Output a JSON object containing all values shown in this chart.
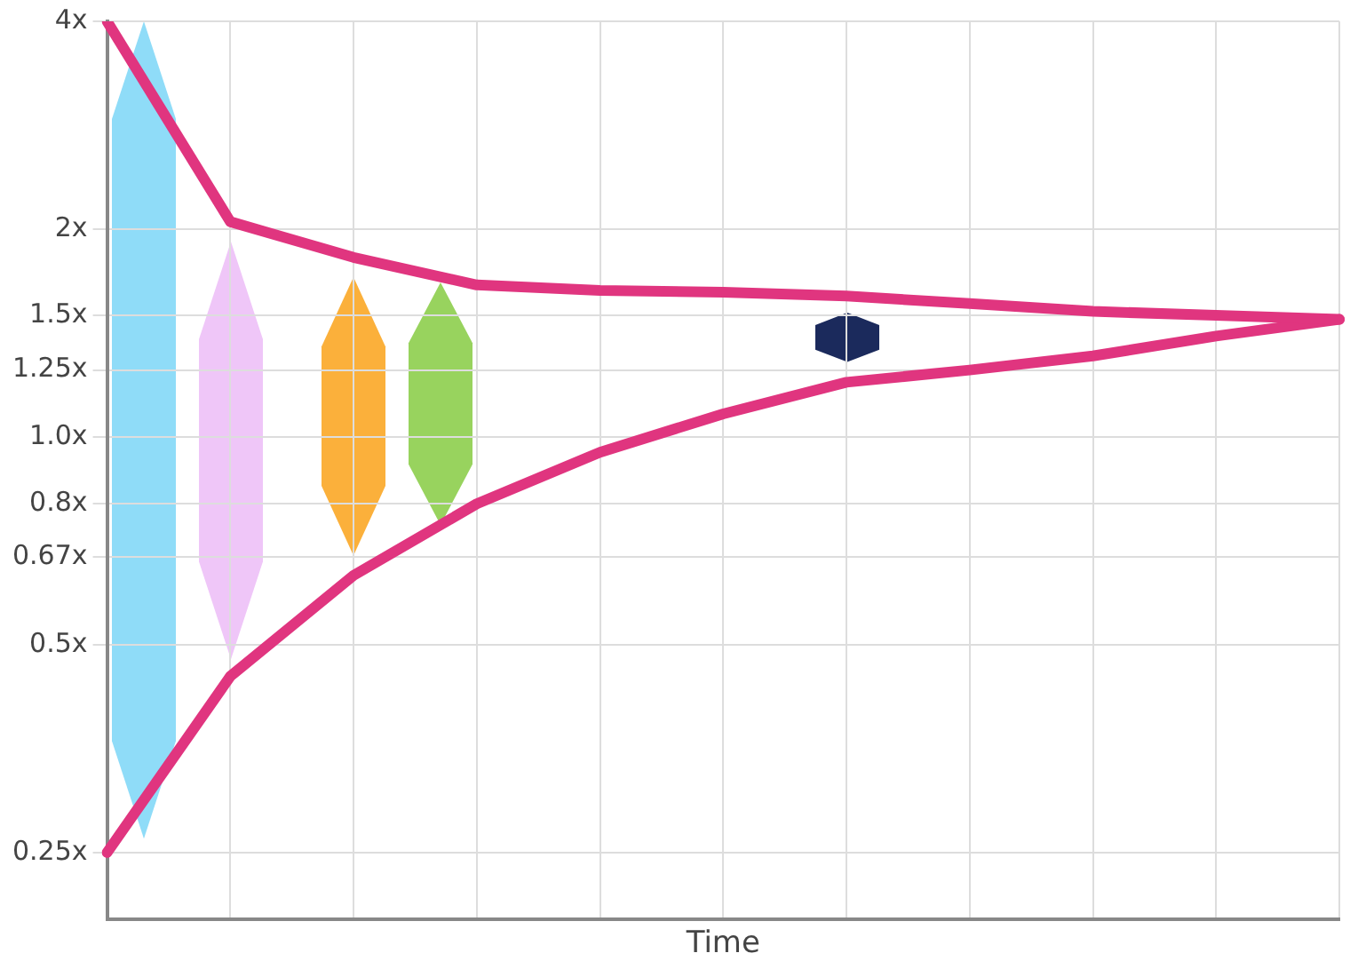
{
  "chart_data": {
    "type": "line",
    "xlabel": "Time",
    "log": "y",
    "grid": true,
    "legend": false,
    "tick_labels": "y",
    "marker": "none",
    "categories": [
      null,
      null,
      null,
      null,
      null,
      null,
      null,
      null,
      null,
      null,
      null
    ],
    "ylim": [
      0.2,
      4
    ],
    "yticks": [
      {
        "value": 0.25,
        "label": "0.25x"
      },
      {
        "value": 0.5,
        "label": "0.5x"
      },
      {
        "value": 0.67,
        "label": "0.67x"
      },
      {
        "value": 0.8,
        "label": "0.8x"
      },
      {
        "value": 1,
        "label": "1.0x"
      },
      {
        "value": 1.25,
        "label": "1.25x"
      },
      {
        "value": 1.5,
        "label": "1.5x"
      },
      {
        "value": 2,
        "label": "2x"
      },
      {
        "value": 4,
        "label": "4x"
      }
    ],
    "series": [
      {
        "color": "#e0357f",
        "values": [
          4,
          2.05,
          1.82,
          1.66,
          1.63,
          1.62,
          1.6,
          1.56,
          1.52,
          1.5,
          1.48
        ]
      },
      {
        "color": "#e0357f",
        "values": [
          0.25,
          0.45,
          0.63,
          0.8,
          0.95,
          1.08,
          1.2,
          1.25,
          1.31,
          1.4,
          1.48
        ]
      }
    ]
  }
}
